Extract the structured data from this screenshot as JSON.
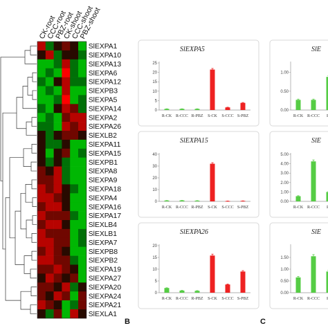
{
  "heatmap": {
    "conditions": [
      "CK-root",
      "CCC-root",
      "PBZ-root",
      "CK-shoot",
      "CCC-shoot",
      "PBZ-shoot"
    ],
    "genes": [
      "SlEXPA1",
      "SlEXPA10",
      "SlEXPA13",
      "SlEXPA6",
      "SlEXPA12",
      "SlEXPB3",
      "SlEXPA5",
      "SlEXPA14",
      "SlEXPA2",
      "SlEXPA26",
      "SlEXLB2",
      "SlEXPA11",
      "SlEXPA15",
      "SlEXPB1",
      "SlEXPA8",
      "SlEXPA9",
      "SlEXPA18",
      "SlEXPA4",
      "SlEXPA16",
      "SlEXPA17",
      "SlEXLB4",
      "SlEXLB1",
      "SlEXPA7",
      "SlEXPB8",
      "SlEXPB2",
      "SlEXPA19",
      "SlEXPA27",
      "SlEXPA20",
      "SlEXPA24",
      "SlEXPA21",
      "SlEXLA1"
    ],
    "values": [
      [
        2,
        -1,
        0,
        1,
        0,
        -2
      ],
      [
        0,
        2,
        -1,
        0,
        0,
        -1
      ],
      [
        -2,
        -2,
        -1,
        2,
        -1,
        -2
      ],
      [
        -2,
        -1,
        -2,
        3,
        -1,
        -2
      ],
      [
        -1,
        -2,
        0,
        2,
        -1,
        -1
      ],
      [
        -2,
        -1,
        -2,
        2,
        -2,
        -2
      ],
      [
        -2,
        -2,
        -1,
        3,
        -2,
        -1
      ],
      [
        -1,
        -2,
        0,
        2,
        1,
        -1
      ],
      [
        -2,
        -1,
        -2,
        1,
        2,
        2
      ],
      [
        -1,
        -1,
        -2,
        2,
        1,
        2
      ],
      [
        0,
        -1,
        0,
        1,
        1,
        0
      ],
      [
        0,
        -1,
        -1,
        0,
        -2,
        -2
      ],
      [
        0,
        -2,
        0,
        1,
        -2,
        -1
      ],
      [
        0,
        -1,
        0,
        -1,
        -2,
        -2
      ],
      [
        1,
        0,
        2,
        -1,
        -2,
        -2
      ],
      [
        1,
        1,
        2,
        -1,
        -2,
        -2
      ],
      [
        2,
        1,
        2,
        0,
        -1,
        -2
      ],
      [
        2,
        2,
        1,
        0,
        -2,
        -2
      ],
      [
        1,
        2,
        2,
        0,
        -2,
        -2
      ],
      [
        2,
        1,
        1,
        1,
        -1,
        -2
      ],
      [
        1,
        2,
        2,
        0,
        -2,
        -2
      ],
      [
        2,
        1,
        1,
        1,
        -2,
        -1
      ],
      [
        2,
        2,
        1,
        1,
        -2,
        -1
      ],
      [
        1,
        2,
        1,
        0,
        -2,
        -2
      ],
      [
        2,
        2,
        1,
        1,
        -1,
        -2
      ],
      [
        1,
        1,
        2,
        1,
        0,
        -2
      ],
      [
        0,
        2,
        1,
        0,
        1,
        -2
      ],
      [
        1,
        1,
        0,
        2,
        -1,
        0
      ],
      [
        1,
        0,
        2,
        1,
        -2,
        1
      ],
      [
        2,
        1,
        0,
        -2,
        -1,
        1
      ],
      [
        0,
        -1,
        1,
        -2,
        2,
        0
      ]
    ]
  },
  "panels": [
    {
      "title": "SlEXPA5",
      "categories": [
        "R-CK",
        "R-CCC",
        "R-PBZ",
        "S-CK",
        "S-CCC",
        "S-PBZ"
      ],
      "values": [
        0.6,
        0.6,
        0.6,
        21.5,
        1.4,
        3.8
      ],
      "errors": [
        0.05,
        0.05,
        0.05,
        0.6,
        0.1,
        0.2
      ],
      "colors": [
        "#55cc44",
        "#55cc44",
        "#55cc44",
        "#ee2222",
        "#ee2222",
        "#ee2222"
      ],
      "yticks": [
        "0",
        "5",
        "10",
        "15",
        "20",
        "25"
      ],
      "ylim": [
        0,
        25
      ]
    },
    {
      "title": "SlEXPA15",
      "categories": [
        "R-CK",
        "R-CCC",
        "R-PBZ",
        "S-CK",
        "S-CCC",
        "S-PBZ"
      ],
      "values": [
        0.7,
        0.8,
        0.6,
        32.0,
        0.3,
        0.4
      ],
      "errors": [
        0.05,
        0.05,
        0.05,
        0.9,
        0.05,
        0.05
      ],
      "colors": [
        "#55cc44",
        "#55cc44",
        "#55cc44",
        "#ee2222",
        "#ee2222",
        "#ee2222"
      ],
      "yticks": [
        "0",
        "10",
        "20",
        "30",
        "40"
      ],
      "ylim": [
        0,
        40
      ]
    },
    {
      "title": "SlEXPA26",
      "categories": [
        "R-CK",
        "R-CCC",
        "R-PBZ",
        "S-CK",
        "S-CCC",
        "S-PBZ"
      ],
      "values": [
        2.0,
        0.9,
        0.8,
        15.8,
        3.5,
        9.0
      ],
      "errors": [
        0.1,
        0.1,
        0.1,
        0.6,
        0.2,
        0.4
      ],
      "colors": [
        "#55cc44",
        "#55cc44",
        "#55cc44",
        "#ee2222",
        "#ee2222",
        "#ee2222"
      ],
      "yticks": [
        "0",
        "5",
        "10",
        "15",
        "20"
      ],
      "ylim": [
        0,
        20
      ]
    },
    {
      "title": "SlE",
      "categories": [
        "R-CK",
        "R-CCC",
        "R-"
      ],
      "values": [
        0.27,
        0.27,
        0.88
      ],
      "errors": [
        0.02,
        0.02,
        0.03
      ],
      "colors": [
        "#55cc44",
        "#55cc44",
        "#55cc44"
      ],
      "yticks": [
        "0.00",
        "0.50",
        "1.00"
      ],
      "ylim": [
        0,
        1.25
      ]
    },
    {
      "title": "SlE",
      "categories": [
        "R-CK",
        "R-CCC",
        "R-"
      ],
      "values": [
        0.55,
        4.25,
        1.0
      ],
      "errors": [
        0.05,
        0.15,
        0.05
      ],
      "colors": [
        "#55cc44",
        "#55cc44",
        "#55cc44"
      ],
      "yticks": [
        "0.00",
        "1.00",
        "2.00",
        "3.00",
        "4.00",
        "5.00"
      ],
      "ylim": [
        0,
        5
      ]
    },
    {
      "title": "SlE",
      "categories": [
        "R-CK",
        "R-CCC",
        "R-"
      ],
      "values": [
        0.65,
        1.55,
        0.9
      ],
      "errors": [
        0.04,
        0.07,
        0.05
      ],
      "colors": [
        "#55cc44",
        "#55cc44",
        "#55cc44"
      ],
      "yticks": [
        "0.00",
        "0.50",
        "1.00",
        "1.50"
      ],
      "ylim": [
        0,
        2
      ]
    }
  ],
  "panel_letters": [
    "B",
    "C"
  ],
  "chart_data": [
    {
      "type": "heatmap",
      "x": [
        "CK-root",
        "CCC-root",
        "PBZ-root",
        "CK-shoot",
        "CCC-shoot",
        "PBZ-shoot"
      ],
      "y": [
        "SlEXPA1",
        "SlEXPA10",
        "SlEXPA13",
        "SlEXPA6",
        "SlEXPA12",
        "SlEXPB3",
        "SlEXPA5",
        "SlEXPA14",
        "SlEXPA2",
        "SlEXPA26",
        "SlEXLB2",
        "SlEXPA11",
        "SlEXPA15",
        "SlEXPB1",
        "SlEXPA8",
        "SlEXPA9",
        "SlEXPA18",
        "SlEXPA4",
        "SlEXPA16",
        "SlEXPA17",
        "SlEXLB4",
        "SlEXLB1",
        "SlEXPA7",
        "SlEXPB8",
        "SlEXPB2",
        "SlEXPA19",
        "SlEXPA27",
        "SlEXPA20",
        "SlEXPA24",
        "SlEXPA21",
        "SlEXLA1"
      ],
      "colors": {
        "low": "#00ff00",
        "mid": "#000000",
        "high": "#ff0000"
      }
    },
    {
      "type": "bar",
      "title": "SlEXPA5",
      "categories": [
        "R-CK",
        "R-CCC",
        "R-PBZ",
        "S-CK",
        "S-CCC",
        "S-PBZ"
      ],
      "values": [
        0.6,
        0.6,
        0.6,
        21.5,
        1.4,
        3.8
      ],
      "ylim": [
        0,
        25
      ]
    },
    {
      "type": "bar",
      "title": "SlEXPA15",
      "categories": [
        "R-CK",
        "R-CCC",
        "R-PBZ",
        "S-CK",
        "S-CCC",
        "S-PBZ"
      ],
      "values": [
        0.7,
        0.8,
        0.6,
        32.0,
        0.3,
        0.4
      ],
      "ylim": [
        0,
        40
      ]
    },
    {
      "type": "bar",
      "title": "SlEXPA26",
      "categories": [
        "R-CK",
        "R-CCC",
        "R-PBZ",
        "S-CK",
        "S-CCC",
        "S-PBZ"
      ],
      "values": [
        2.0,
        0.9,
        0.8,
        15.8,
        3.5,
        9.0
      ],
      "ylim": [
        0,
        20
      ]
    },
    {
      "type": "bar",
      "title": "SlE",
      "categories": [
        "R-CK",
        "R-CCC",
        "R-"
      ],
      "values": [
        0.27,
        0.27,
        0.88
      ],
      "ylim": [
        0,
        1.25
      ]
    },
    {
      "type": "bar",
      "title": "SlE",
      "categories": [
        "R-CK",
        "R-CCC",
        "R-"
      ],
      "values": [
        0.55,
        4.25,
        1.0
      ],
      "ylim": [
        0,
        5
      ]
    },
    {
      "type": "bar",
      "title": "SlE",
      "categories": [
        "R-CK",
        "R-CCC",
        "R-"
      ],
      "values": [
        0.65,
        1.55,
        0.9
      ],
      "ylim": [
        0,
        2
      ]
    }
  ]
}
